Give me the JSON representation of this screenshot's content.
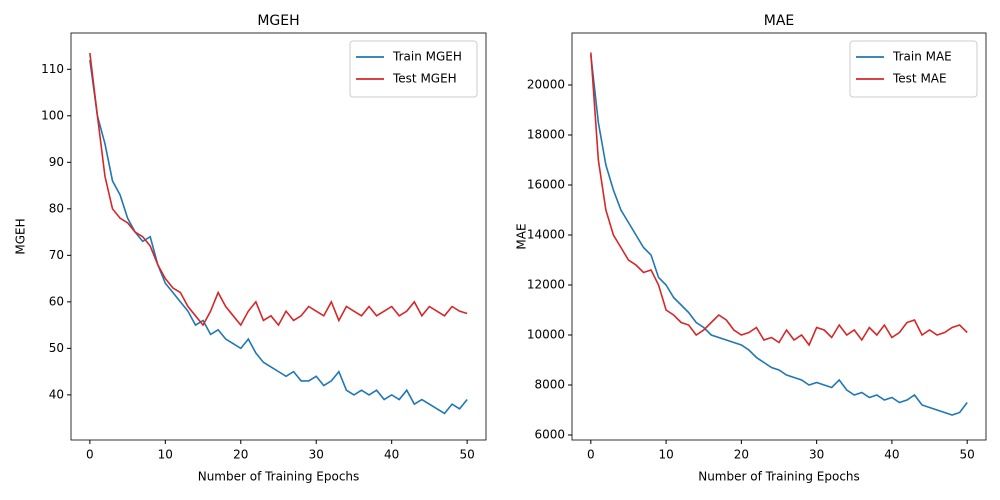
{
  "chart_data": [
    {
      "type": "line",
      "title": "MGEH",
      "x_label": "Number of Training Epochs",
      "y_label": "MGEH",
      "x": [
        0,
        1,
        2,
        3,
        4,
        5,
        6,
        7,
        8,
        9,
        10,
        11,
        12,
        13,
        14,
        15,
        16,
        17,
        18,
        19,
        20,
        21,
        22,
        23,
        24,
        25,
        26,
        27,
        28,
        29,
        30,
        31,
        32,
        33,
        34,
        35,
        36,
        37,
        38,
        39,
        40,
        41,
        42,
        43,
        44,
        45,
        46,
        47,
        48,
        49,
        50
      ],
      "series": [
        {
          "name": "Train MGEH",
          "color": "#1f77b4",
          "values": [
            112,
            100,
            94,
            86,
            83,
            78,
            75,
            73,
            74,
            68,
            64,
            62,
            60,
            58,
            55,
            56,
            53,
            54,
            52,
            51,
            50,
            52,
            49,
            47,
            46,
            45,
            44,
            45,
            43,
            43,
            44,
            42,
            43,
            45,
            41,
            40,
            41,
            40,
            41,
            39,
            40,
            39,
            41,
            38,
            39,
            38,
            37,
            36,
            38,
            37,
            39
          ]
        },
        {
          "name": "Test MGEH",
          "color": "#d62728",
          "values": [
            113.5,
            100,
            87,
            80,
            78,
            77,
            75,
            74,
            72,
            68,
            65,
            63,
            62,
            59,
            57,
            55,
            58,
            62,
            59,
            57,
            55,
            58,
            60,
            56,
            57,
            55,
            58,
            56,
            57,
            59,
            58,
            57,
            60,
            56,
            59,
            58,
            57,
            59,
            57,
            58,
            59,
            57,
            58,
            60,
            57,
            59,
            58,
            57,
            59,
            58,
            57.5
          ]
        }
      ],
      "xlim": [
        -2.5,
        52.5
      ],
      "ylim": [
        30.3,
        117.8
      ],
      "xticks": [
        0,
        10,
        20,
        30,
        40,
        50
      ],
      "yticks": [
        40,
        50,
        60,
        70,
        80,
        90,
        100,
        110
      ],
      "legend": "upper right"
    },
    {
      "type": "line",
      "title": "MAE",
      "x_label": "Number of Training Epochs",
      "y_label": "MAE",
      "x": [
        0,
        1,
        2,
        3,
        4,
        5,
        6,
        7,
        8,
        9,
        10,
        11,
        12,
        13,
        14,
        15,
        16,
        17,
        18,
        19,
        20,
        21,
        22,
        23,
        24,
        25,
        26,
        27,
        28,
        29,
        30,
        31,
        32,
        33,
        34,
        35,
        36,
        37,
        38,
        39,
        40,
        41,
        42,
        43,
        44,
        45,
        46,
        47,
        48,
        49,
        50
      ],
      "series": [
        {
          "name": "Train MAE",
          "color": "#1f77b4",
          "values": [
            21200,
            18500,
            16800,
            15800,
            15000,
            14500,
            14000,
            13500,
            13200,
            12300,
            12000,
            11500,
            11200,
            10900,
            10500,
            10300,
            10000,
            9900,
            9800,
            9700,
            9600,
            9400,
            9100,
            8900,
            8700,
            8600,
            8400,
            8300,
            8200,
            8000,
            8100,
            8000,
            7900,
            8200,
            7800,
            7600,
            7700,
            7500,
            7600,
            7400,
            7500,
            7300,
            7400,
            7600,
            7200,
            7100,
            7000,
            6900,
            6800,
            6900,
            7300
          ]
        },
        {
          "name": "Test MAE",
          "color": "#d62728",
          "values": [
            21300,
            17000,
            15000,
            14000,
            13500,
            13000,
            12800,
            12500,
            12600,
            12000,
            11000,
            10800,
            10500,
            10400,
            10000,
            10200,
            10500,
            10800,
            10600,
            10200,
            10000,
            10100,
            10300,
            9800,
            9900,
            9700,
            10200,
            9800,
            10000,
            9600,
            10300,
            10200,
            9900,
            10400,
            10000,
            10200,
            9800,
            10300,
            10000,
            10400,
            9900,
            10100,
            10500,
            10600,
            10000,
            10200,
            10000,
            10100,
            10300,
            10400,
            10100
          ]
        }
      ],
      "xlim": [
        -2.5,
        52.5
      ],
      "ylim": [
        5800,
        22080
      ],
      "xticks": [
        0,
        10,
        20,
        30,
        40,
        50
      ],
      "yticks": [
        6000,
        8000,
        10000,
        12000,
        14000,
        16000,
        18000,
        20000
      ],
      "legend": "upper right"
    }
  ]
}
